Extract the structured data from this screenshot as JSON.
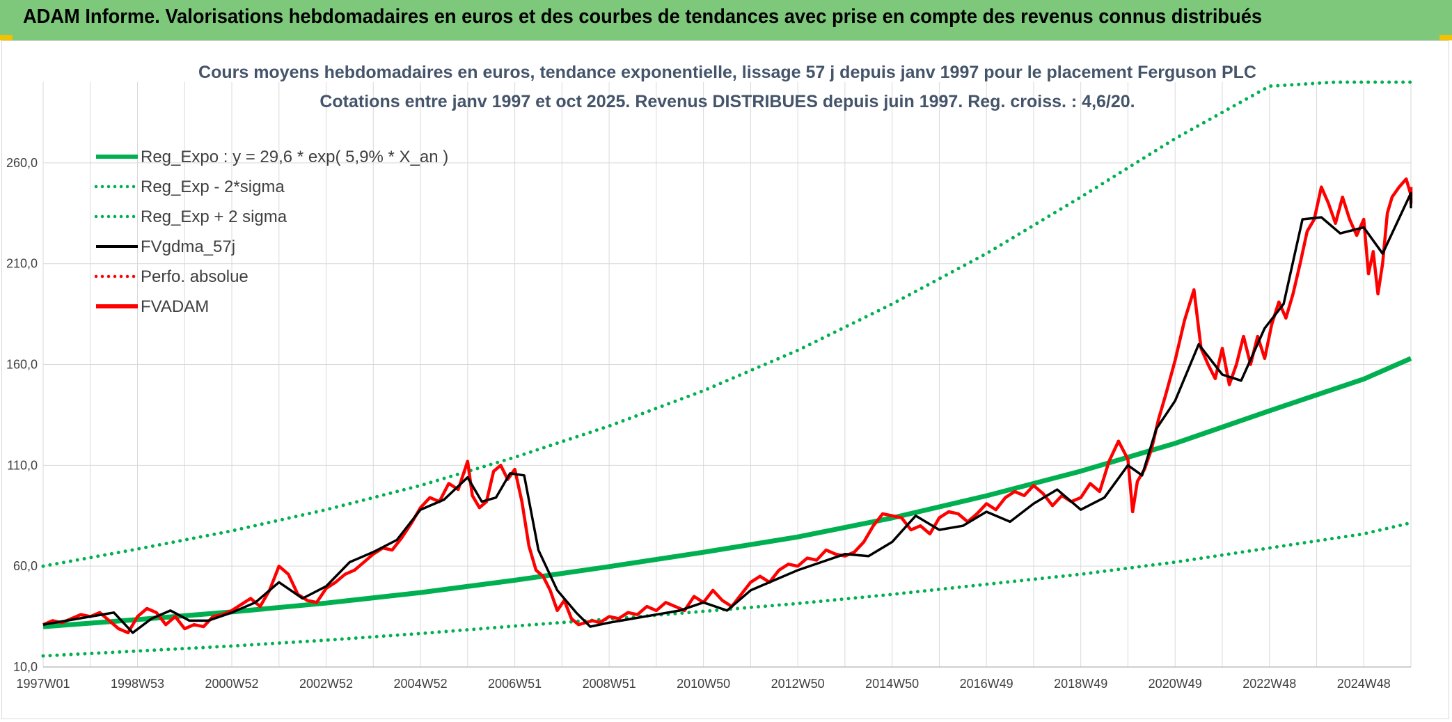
{
  "header": {
    "title": "ADAM Informe. Valorisations hebdomadaires en euros et des courbes de tendances avec prise en compte des revenus connus distribués"
  },
  "colors": {
    "header_bg": "#7dc87a",
    "reg_green": "#00b050",
    "price_red": "#ff0000",
    "mavg_black": "#000000",
    "title_text": "#44546a",
    "grid": "#d9d9d9"
  },
  "chart_data": {
    "type": "line",
    "title": "Cours moyens hebdomadaires en euros, tendance exponentielle, lissage 57 j depuis janv 1997 pour le placement Ferguson PLC",
    "subtitle": "Cotations entre janv 1997 et oct 2025. Revenus DISTRIBUES depuis juin 1997. Reg. croiss. : 4,6/20.",
    "xlabel": "",
    "ylabel": "",
    "x_ticks": [
      "1997W01",
      "1998W53",
      "2000W52",
      "2002W52",
      "2004W52",
      "2006W51",
      "2008W51",
      "2010W50",
      "2012W50",
      "2014W50",
      "2016W49",
      "2018W49",
      "2020W49",
      "2022W48",
      "2024W48"
    ],
    "x_tick_years": [
      1997.0,
      1999.0,
      2001.0,
      2003.0,
      2005.0,
      2007.0,
      2009.0,
      2011.0,
      2013.0,
      2015.0,
      2017.0,
      2019.0,
      2021.0,
      2023.0,
      2025.0
    ],
    "x_range_years": [
      1997.0,
      2026.0
    ],
    "y_ticks": [
      "10,0",
      "60,0",
      "110,0",
      "160,0",
      "210,0",
      "260,0"
    ],
    "y_tick_values": [
      10,
      60,
      110,
      160,
      210,
      260
    ],
    "ylim": [
      10,
      300
    ],
    "grid": true,
    "legend_position": "top-left",
    "legend": [
      {
        "label": "Reg_Expo : y = 29,6 * exp( 5,9% *  X_an )",
        "color": "#00b050",
        "style": "solid-thick"
      },
      {
        "label": "Reg_Exp - 2*sigma",
        "color": "#00b050",
        "style": "dotted"
      },
      {
        "label": "Reg_Exp + 2 sigma",
        "color": "#00b050",
        "style": "dotted"
      },
      {
        "label": "FVgdma_57j",
        "color": "#000000",
        "style": "solid"
      },
      {
        "label": "Perfo. absolue",
        "color": "#ff0000",
        "style": "dotted"
      },
      {
        "label": "FVADAM",
        "color": "#ff0000",
        "style": "solid-thick"
      }
    ],
    "series": [
      {
        "name": "Reg_Expo : y = 29,6 * exp( 5,9% *  X_an )",
        "color": "#00b050",
        "style": "solid-thick",
        "x": [
          1997.0,
          1999.0,
          2001.0,
          2003.0,
          2005.0,
          2007.0,
          2009.0,
          2011.0,
          2013.0,
          2015.0,
          2017.0,
          2019.0,
          2021.0,
          2023.0,
          2025.0,
          2026.8
        ],
        "y": [
          30.0,
          33.5,
          37.3,
          41.7,
          46.9,
          53.0,
          59.8,
          66.9,
          74.5,
          83.9,
          94.9,
          107.1,
          120.9,
          137.0,
          152.8,
          163.0
        ]
      },
      {
        "name": "Reg_Exp - 2*sigma",
        "color": "#00b050",
        "style": "dotted",
        "x": [
          1997.0,
          1999.0,
          2001.0,
          2003.0,
          2005.0,
          2007.0,
          2009.0,
          2011.0,
          2013.0,
          2015.0,
          2017.0,
          2019.0,
          2021.0,
          2023.0,
          2025.0,
          2026.8
        ],
        "y": [
          15.5,
          17.9,
          20.4,
          23.3,
          26.6,
          30.3,
          33.8,
          37.6,
          41.5,
          46.0,
          51.0,
          56.0,
          62.0,
          69.0,
          76.0,
          81.5
        ]
      },
      {
        "name": "Reg_Exp + 2 sigma",
        "color": "#00b050",
        "style": "dotted",
        "x": [
          1997.0,
          1999.0,
          2001.0,
          2003.0,
          2005.0,
          2007.0,
          2009.0,
          2011.0,
          2013.0,
          2015.0,
          2017.0,
          2019.0,
          2021.0,
          2023.0,
          2024.4,
          2025.0,
          2026.8
        ],
        "y": [
          60.0,
          68.5,
          77.5,
          88.0,
          100.0,
          114.0,
          129.5,
          147.0,
          167.0,
          190.0,
          215.0,
          243.0,
          272.0,
          298.0,
          300.0,
          300.0,
          300.0
        ]
      },
      {
        "name": "FVgdma_57j",
        "color": "#000000",
        "style": "solid",
        "x": [
          1997.0,
          1997.5,
          1998.0,
          1998.5,
          1998.9,
          1999.3,
          1999.7,
          2000.1,
          2000.5,
          2001.0,
          2001.5,
          2002.0,
          2002.5,
          2003.0,
          2003.5,
          2004.0,
          2004.5,
          2005.0,
          2005.5,
          2006.0,
          2006.3,
          2006.6,
          2006.9,
          2007.2,
          2007.5,
          2007.9,
          2008.3,
          2008.6,
          2009.0,
          2009.5,
          2010.0,
          2010.5,
          2011.0,
          2011.5,
          2012.0,
          2012.5,
          2013.0,
          2013.5,
          2014.0,
          2014.5,
          2015.0,
          2015.5,
          2016.0,
          2016.5,
          2017.0,
          2017.5,
          2018.0,
          2018.5,
          2019.0,
          2019.5,
          2020.0,
          2020.3,
          2020.6,
          2021.0,
          2021.5,
          2022.0,
          2022.4,
          2022.9,
          2023.3,
          2023.7,
          2024.1,
          2024.5,
          2025.0,
          2025.4,
          2025.8,
          2026.1,
          2026.4,
          2026.8
        ],
        "y": [
          31,
          33,
          35,
          37,
          27,
          34,
          38,
          33,
          33,
          37,
          42,
          52,
          44,
          50,
          62,
          67,
          73,
          88,
          93,
          104,
          92,
          94,
          106,
          105,
          68,
          48,
          37,
          30,
          32,
          34,
          36,
          38,
          42,
          38,
          48,
          53,
          58,
          62,
          66,
          65,
          72,
          85,
          78,
          80,
          87,
          82,
          91,
          98,
          88,
          94,
          110,
          105,
          128,
          142,
          170,
          155,
          152,
          178,
          190,
          232,
          233,
          225,
          228,
          215,
          235,
          245,
          238,
          244
        ]
      },
      {
        "name": "FVADAM",
        "color": "#ff0000",
        "style": "solid-thick",
        "x": [
          1997.0,
          1997.2,
          1997.4,
          1997.6,
          1997.8,
          1998.0,
          1998.2,
          1998.4,
          1998.6,
          1998.8,
          1999.0,
          1999.2,
          1999.4,
          1999.6,
          1999.8,
          2000.0,
          2000.2,
          2000.4,
          2000.6,
          2000.8,
          2001.0,
          2001.2,
          2001.4,
          2001.6,
          2001.8,
          2002.0,
          2002.2,
          2002.4,
          2002.6,
          2002.8,
          2003.0,
          2003.2,
          2003.4,
          2003.6,
          2003.8,
          2004.0,
          2004.2,
          2004.4,
          2004.6,
          2004.8,
          2005.0,
          2005.2,
          2005.4,
          2005.6,
          2005.8,
          2006.0,
          2006.1,
          2006.25,
          2006.4,
          2006.55,
          2006.7,
          2006.85,
          2007.0,
          2007.15,
          2007.3,
          2007.45,
          2007.6,
          2007.75,
          2007.9,
          2008.05,
          2008.2,
          2008.35,
          2008.5,
          2008.65,
          2008.8,
          2009.0,
          2009.2,
          2009.4,
          2009.6,
          2009.8,
          2010.0,
          2010.2,
          2010.4,
          2010.6,
          2010.8,
          2011.0,
          2011.2,
          2011.4,
          2011.6,
          2011.8,
          2012.0,
          2012.2,
          2012.4,
          2012.6,
          2012.8,
          2013.0,
          2013.2,
          2013.4,
          2013.6,
          2013.8,
          2014.0,
          2014.2,
          2014.4,
          2014.6,
          2014.8,
          2015.0,
          2015.2,
          2015.4,
          2015.6,
          2015.8,
          2016.0,
          2016.2,
          2016.4,
          2016.6,
          2016.8,
          2017.0,
          2017.2,
          2017.4,
          2017.6,
          2017.8,
          2018.0,
          2018.2,
          2018.4,
          2018.6,
          2018.8,
          2019.0,
          2019.2,
          2019.4,
          2019.6,
          2019.8,
          2020.0,
          2020.1,
          2020.2,
          2020.35,
          2020.5,
          2020.65,
          2020.8,
          2021.0,
          2021.2,
          2021.4,
          2021.55,
          2021.7,
          2021.85,
          2022.0,
          2022.15,
          2022.3,
          2022.45,
          2022.6,
          2022.75,
          2022.9,
          2023.05,
          2023.2,
          2023.35,
          2023.5,
          2023.65,
          2023.8,
          2023.95,
          2024.1,
          2024.25,
          2024.4,
          2024.55,
          2024.7,
          2024.85,
          2025.0,
          2025.1,
          2025.2,
          2025.3,
          2025.4,
          2025.5,
          2025.6,
          2025.75,
          2025.9,
          2026.05,
          2026.2,
          2026.35,
          2026.5,
          2026.65,
          2026.8
        ],
        "y": [
          31,
          33,
          32,
          34,
          36,
          35,
          37,
          33,
          29,
          27,
          35,
          39,
          37,
          31,
          35,
          29,
          31,
          30,
          35,
          36,
          38,
          41,
          44,
          40,
          48,
          60,
          56,
          46,
          43,
          42,
          49,
          52,
          56,
          58,
          62,
          66,
          69,
          68,
          74,
          81,
          89,
          94,
          92,
          101,
          98,
          112,
          95,
          89,
          92,
          107,
          110,
          103,
          108,
          92,
          70,
          58,
          55,
          48,
          38,
          43,
          34,
          31,
          32,
          33,
          32,
          35,
          34,
          37,
          36,
          40,
          38,
          42,
          40,
          38,
          45,
          42,
          48,
          43,
          40,
          46,
          52,
          55,
          52,
          58,
          61,
          60,
          64,
          63,
          68,
          66,
          65,
          67,
          72,
          80,
          86,
          85,
          84,
          78,
          80,
          76,
          84,
          87,
          86,
          82,
          86,
          91,
          88,
          94,
          97,
          95,
          100,
          96,
          90,
          95,
          92,
          94,
          101,
          97,
          112,
          122,
          113,
          87,
          102,
          108,
          118,
          133,
          145,
          162,
          182,
          197,
          168,
          160,
          153,
          168,
          150,
          160,
          174,
          160,
          174,
          163,
          180,
          191,
          183,
          195,
          210,
          226,
          232,
          248,
          240,
          230,
          243,
          232,
          224,
          232,
          205,
          216,
          195,
          210,
          235,
          243,
          248,
          252,
          244,
          245,
          240,
          246,
          244,
          248
        ]
      }
    ]
  },
  "legend_labels": [
    "Reg_Expo : y = 29,6 * exp( 5,9% *  X_an )",
    "Reg_Exp - 2*sigma",
    "Reg_Exp + 2 sigma",
    "FVgdma_57j",
    "Perfo. absolue",
    "FVADAM"
  ]
}
